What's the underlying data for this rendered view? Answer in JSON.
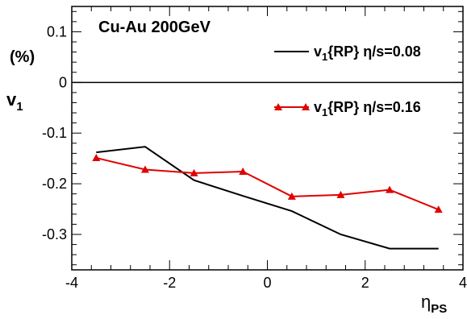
{
  "chart_data": {
    "type": "line",
    "annotation": "Cu-Au  200GeV",
    "ylabel_unit": "(%)",
    "ylabel_main": "v",
    "ylabel_sub": "1",
    "xlabel_main": "η",
    "xlabel_sub": "PS",
    "xlim": [
      -4,
      4
    ],
    "ylim": [
      -0.37,
      0.15
    ],
    "xticks": [
      -4,
      -2,
      0,
      2,
      4
    ],
    "xtick_labels": [
      "-4",
      "-2",
      "0",
      "2",
      "4"
    ],
    "yticks": [
      0.1,
      0,
      -0.1,
      -0.2,
      -0.3
    ],
    "ytick_labels": [
      "0.1",
      "0",
      "-0.1",
      "-0.2",
      "-0.3"
    ],
    "zero_line": true,
    "series": [
      {
        "legend_main": "v",
        "legend_sub": "1",
        "legend_rest": "{RP}  η/s=0.08",
        "color": "#000000",
        "marker": "none",
        "x": [
          -3.5,
          -2.5,
          -1.5,
          -0.5,
          0.5,
          1.5,
          2.5,
          3.5
        ],
        "y": [
          -0.138,
          -0.127,
          -0.193,
          -0.224,
          -0.254,
          -0.3,
          -0.328,
          -0.328
        ]
      },
      {
        "legend_main": "v",
        "legend_sub": "1",
        "legend_rest": "{RP}  η/s=0.16",
        "color": "#e00000",
        "marker": "triangle",
        "x": [
          -3.5,
          -2.5,
          -1.5,
          -0.5,
          0.5,
          1.5,
          2.5,
          3.5
        ],
        "y": [
          -0.149,
          -0.172,
          -0.179,
          -0.176,
          -0.225,
          -0.222,
          -0.212,
          -0.251
        ]
      }
    ]
  }
}
